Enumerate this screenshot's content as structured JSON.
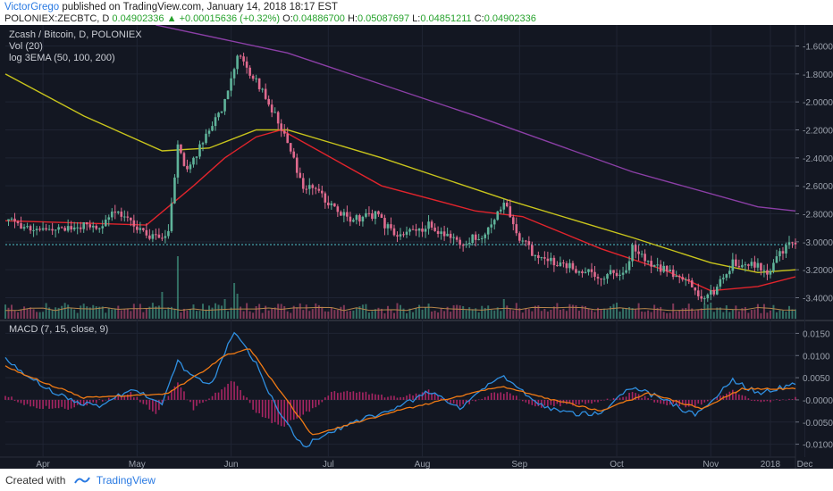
{
  "header": {
    "author": "VictorGrego",
    "published_text": "published on TradingView.com, January 14, 2018 18:17 EST",
    "symbol": "POLONIEX:ZECBTC, D",
    "last": "0.04902336",
    "change_arrow": "▲",
    "change": "+0.00015636 (+0.32%)",
    "open_label": "O:",
    "open": "0.04886700",
    "high_label": "H:",
    "high": "0.05087697",
    "low_label": "L:",
    "low": "0.04851211",
    "close_label": "C:",
    "close": "0.04902336"
  },
  "legend": {
    "title": "Zcash / Bitcoin, D, POLONIEX",
    "volume": "Vol (20)",
    "ema": "log 3EMA (50, 100, 200)",
    "macd": "MACD (7, 15, close, 9)"
  },
  "footer": {
    "created_with": "Created with",
    "brand": "TradingView"
  },
  "colors": {
    "background": "#131722",
    "up_candle": "#5fb39a",
    "down_candle": "#e06a8e",
    "ema50": "#e0242c",
    "ema100": "#c8c41c",
    "ema200": "#8b3fa6",
    "macd_line": "#2f8fe0",
    "signal_line": "#f07a14",
    "histogram": "#c2286e"
  },
  "chart_data": [
    {
      "type": "candlestick",
      "title": "Zcash / Bitcoin, D, POLONIEX",
      "y_scale": "log",
      "ylim": [
        -3.55,
        -1.45
      ],
      "y_ticks": [
        "-1.6000",
        "-1.8000",
        "-2.0000",
        "-2.2000",
        "-2.4000",
        "-2.6000",
        "-2.8000",
        "-3.0000",
        "-3.2000",
        "-3.4000"
      ],
      "x_ticks": [
        "Apr",
        "May",
        "Jun",
        "Jul",
        "Aug",
        "Sep",
        "Oct",
        "Nov",
        "Dec",
        "2018"
      ],
      "last_value": -3.02,
      "close_path": [
        {
          "t": 0,
          "v": -2.85
        },
        {
          "t": 10,
          "v": -2.92
        },
        {
          "t": 20,
          "v": -2.9
        },
        {
          "t": 30,
          "v": -2.88
        },
        {
          "t": 35,
          "v": -2.78
        },
        {
          "t": 45,
          "v": -2.95
        },
        {
          "t": 52,
          "v": -2.95
        },
        {
          "t": 55,
          "v": -2.3
        },
        {
          "t": 58,
          "v": -2.5
        },
        {
          "t": 65,
          "v": -2.2
        },
        {
          "t": 70,
          "v": -2.0
        },
        {
          "t": 74,
          "v": -1.65
        },
        {
          "t": 80,
          "v": -1.85
        },
        {
          "t": 86,
          "v": -2.1
        },
        {
          "t": 90,
          "v": -2.3
        },
        {
          "t": 95,
          "v": -2.6
        },
        {
          "t": 100,
          "v": -2.65
        },
        {
          "t": 110,
          "v": -2.85
        },
        {
          "t": 118,
          "v": -2.8
        },
        {
          "t": 125,
          "v": -2.98
        },
        {
          "t": 135,
          "v": -2.88
        },
        {
          "t": 145,
          "v": -3.0
        },
        {
          "t": 153,
          "v": -2.95
        },
        {
          "t": 159,
          "v": -2.7
        },
        {
          "t": 163,
          "v": -2.95
        },
        {
          "t": 170,
          "v": -3.12
        },
        {
          "t": 180,
          "v": -3.18
        },
        {
          "t": 190,
          "v": -3.25
        },
        {
          "t": 198,
          "v": -3.2
        },
        {
          "t": 200,
          "v": -3.05
        },
        {
          "t": 205,
          "v": -3.15
        },
        {
          "t": 210,
          "v": -3.2
        },
        {
          "t": 218,
          "v": -3.3
        },
        {
          "t": 222,
          "v": -3.4
        },
        {
          "t": 226,
          "v": -3.35
        },
        {
          "t": 232,
          "v": -3.15
        },
        {
          "t": 240,
          "v": -3.18
        },
        {
          "t": 244,
          "v": -3.22
        },
        {
          "t": 246,
          "v": -3.08
        },
        {
          "t": 252,
          "v": -3.01
        }
      ],
      "ema50": [
        {
          "t": 0,
          "v": -2.85
        },
        {
          "t": 45,
          "v": -2.88
        },
        {
          "t": 60,
          "v": -2.6
        },
        {
          "t": 70,
          "v": -2.4
        },
        {
          "t": 80,
          "v": -2.25
        },
        {
          "t": 88,
          "v": -2.2
        },
        {
          "t": 100,
          "v": -2.35
        },
        {
          "t": 120,
          "v": -2.6
        },
        {
          "t": 150,
          "v": -2.78
        },
        {
          "t": 165,
          "v": -2.82
        },
        {
          "t": 190,
          "v": -3.05
        },
        {
          "t": 210,
          "v": -3.2
        },
        {
          "t": 225,
          "v": -3.35
        },
        {
          "t": 240,
          "v": -3.32
        },
        {
          "t": 252,
          "v": -3.25
        }
      ],
      "ema100": [
        {
          "t": 0,
          "v": -1.8
        },
        {
          "t": 25,
          "v": -2.1
        },
        {
          "t": 50,
          "v": -2.35
        },
        {
          "t": 65,
          "v": -2.33
        },
        {
          "t": 80,
          "v": -2.2
        },
        {
          "t": 90,
          "v": -2.2
        },
        {
          "t": 120,
          "v": -2.4
        },
        {
          "t": 160,
          "v": -2.7
        },
        {
          "t": 200,
          "v": -2.97
        },
        {
          "t": 225,
          "v": -3.15
        },
        {
          "t": 240,
          "v": -3.22
        },
        {
          "t": 252,
          "v": -3.2
        }
      ],
      "ema200": [
        {
          "t": 48,
          "v": -1.45
        },
        {
          "t": 90,
          "v": -1.65
        },
        {
          "t": 150,
          "v": -2.1
        },
        {
          "t": 200,
          "v": -2.5
        },
        {
          "t": 240,
          "v": -2.75
        },
        {
          "t": 252,
          "v": -2.78
        }
      ]
    },
    {
      "type": "line",
      "title": "MACD (7, 15, close, 9)",
      "ylim": [
        -0.0125,
        0.0175
      ],
      "y_ticks": [
        "0.0150",
        "0.0100",
        "0.0050",
        "-0.0000",
        "-0.0050",
        "-0.0100"
      ],
      "series": [
        {
          "name": "MACD",
          "points": [
            {
              "t": 0,
              "v": 0.009
            },
            {
              "t": 10,
              "v": 0.004
            },
            {
              "t": 20,
              "v": 0.0
            },
            {
              "t": 30,
              "v": -0.0015
            },
            {
              "t": 40,
              "v": 0.0025
            },
            {
              "t": 50,
              "v": -0.0005
            },
            {
              "t": 55,
              "v": 0.0085
            },
            {
              "t": 60,
              "v": 0.005
            },
            {
              "t": 66,
              "v": 0.004
            },
            {
              "t": 73,
              "v": 0.0155
            },
            {
              "t": 80,
              "v": 0.008
            },
            {
              "t": 88,
              "v": -0.004
            },
            {
              "t": 95,
              "v": -0.0105
            },
            {
              "t": 105,
              "v": -0.007
            },
            {
              "t": 115,
              "v": -0.004
            },
            {
              "t": 125,
              "v": -0.002
            },
            {
              "t": 135,
              "v": 0.002
            },
            {
              "t": 145,
              "v": -0.002
            },
            {
              "t": 158,
              "v": 0.0055
            },
            {
              "t": 170,
              "v": -0.001
            },
            {
              "t": 180,
              "v": -0.003
            },
            {
              "t": 190,
              "v": -0.003
            },
            {
              "t": 200,
              "v": 0.003
            },
            {
              "t": 210,
              "v": 0.0
            },
            {
              "t": 220,
              "v": -0.0035
            },
            {
              "t": 232,
              "v": 0.0045
            },
            {
              "t": 240,
              "v": 0.0015
            },
            {
              "t": 252,
              "v": 0.0035
            }
          ]
        },
        {
          "name": "Signal",
          "points": [
            {
              "t": 0,
              "v": 0.0075
            },
            {
              "t": 12,
              "v": 0.004
            },
            {
              "t": 25,
              "v": 0.0005
            },
            {
              "t": 40,
              "v": 0.001
            },
            {
              "t": 52,
              "v": 0.0015
            },
            {
              "t": 62,
              "v": 0.006
            },
            {
              "t": 70,
              "v": 0.01
            },
            {
              "t": 78,
              "v": 0.0115
            },
            {
              "t": 88,
              "v": 0.0015
            },
            {
              "t": 98,
              "v": -0.008
            },
            {
              "t": 110,
              "v": -0.0055
            },
            {
              "t": 125,
              "v": -0.0025
            },
            {
              "t": 140,
              "v": 0.0
            },
            {
              "t": 158,
              "v": 0.003
            },
            {
              "t": 172,
              "v": 0.0005
            },
            {
              "t": 190,
              "v": -0.0025
            },
            {
              "t": 205,
              "v": 0.0015
            },
            {
              "t": 222,
              "v": -0.002
            },
            {
              "t": 235,
              "v": 0.0025
            },
            {
              "t": 252,
              "v": 0.0025
            }
          ]
        },
        {
          "name": "Histogram",
          "points": [
            {
              "t": 0,
              "v": 0.001
            },
            {
              "t": 8,
              "v": -0.0015
            },
            {
              "t": 20,
              "v": -0.002
            },
            {
              "t": 40,
              "v": 0.0015
            },
            {
              "t": 48,
              "v": -0.003
            },
            {
              "t": 55,
              "v": 0.004
            },
            {
              "t": 60,
              "v": -0.002
            },
            {
              "t": 73,
              "v": 0.0045
            },
            {
              "t": 80,
              "v": -0.003
            },
            {
              "t": 88,
              "v": -0.006
            },
            {
              "t": 95,
              "v": -0.0035
            },
            {
              "t": 105,
              "v": 0.002
            },
            {
              "t": 115,
              "v": 0.0015
            },
            {
              "t": 125,
              "v": 0.0005
            },
            {
              "t": 135,
              "v": 0.002
            },
            {
              "t": 145,
              "v": -0.0015
            },
            {
              "t": 158,
              "v": 0.002
            },
            {
              "t": 170,
              "v": -0.0015
            },
            {
              "t": 180,
              "v": -0.001
            },
            {
              "t": 190,
              "v": -0.0005
            },
            {
              "t": 200,
              "v": 0.0015
            },
            {
              "t": 210,
              "v": -0.001
            },
            {
              "t": 220,
              "v": -0.0015
            },
            {
              "t": 232,
              "v": 0.002
            },
            {
              "t": 240,
              "v": -0.0005
            },
            {
              "t": 252,
              "v": 0.0005
            }
          ]
        }
      ]
    }
  ]
}
